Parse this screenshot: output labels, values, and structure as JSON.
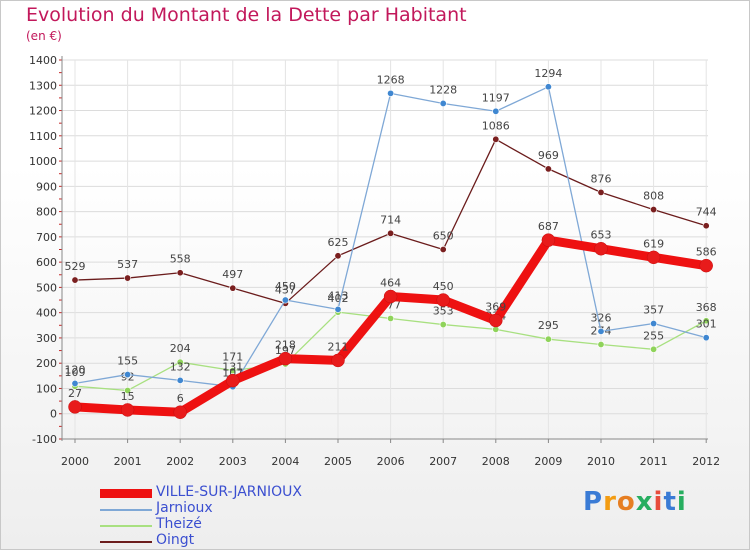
{
  "title": "Evolution du Montant de la Dette par Habitant",
  "subtitle": "(en €)",
  "logo": {
    "text": "Proxiti",
    "letter_colors": [
      "#3a7bd5",
      "#f39c12",
      "#e67e22",
      "#27ae60",
      "#e74c3c",
      "#3a7bd5",
      "#27ae60"
    ]
  },
  "chart_data": {
    "type": "line",
    "x": [
      "2000",
      "2001",
      "2002",
      "2003",
      "2004",
      "2005",
      "2006",
      "2007",
      "2008",
      "2009",
      "2010",
      "2011",
      "2012"
    ],
    "ylim": [
      -100,
      1400
    ],
    "yticks": [
      -100,
      0,
      100,
      200,
      300,
      400,
      500,
      600,
      700,
      800,
      900,
      1000,
      1100,
      1200,
      1300,
      1400
    ],
    "grid": true,
    "legend_position": "bottom-left",
    "series": [
      {
        "name": "Oingt",
        "color": "#6b1c1c",
        "marker": "#7a1f1f",
        "thick": false,
        "values": [
          529,
          537,
          558,
          497,
          437,
          625,
          714,
          650,
          1086,
          969,
          876,
          808,
          744
        ]
      },
      {
        "name": "Theizé",
        "color": "#a8e080",
        "marker": "#8fd35a",
        "thick": false,
        "values": [
          109,
          92,
          204,
          171,
          197,
          402,
          377,
          353,
          334,
          295,
          274,
          255,
          368
        ]
      },
      {
        "name": "Jarnioux",
        "color": "#7fa8d6",
        "marker": "#3f87d1",
        "thick": false,
        "values": [
          120,
          155,
          132,
          107,
          450,
          413,
          1268,
          1228,
          1197,
          1294,
          326,
          357,
          301
        ]
      },
      {
        "name": "VILLE-SUR-JARNIOUX",
        "color": "#ee1111",
        "marker": "#e81b1b",
        "thick": true,
        "values": [
          27,
          15,
          6,
          131,
          218,
          211,
          464,
          450,
          369,
          687,
          653,
          619,
          586
        ]
      }
    ],
    "legend_order": [
      "VILLE-SUR-JARNIOUX",
      "Jarnioux",
      "Theizé",
      "Oingt"
    ]
  }
}
